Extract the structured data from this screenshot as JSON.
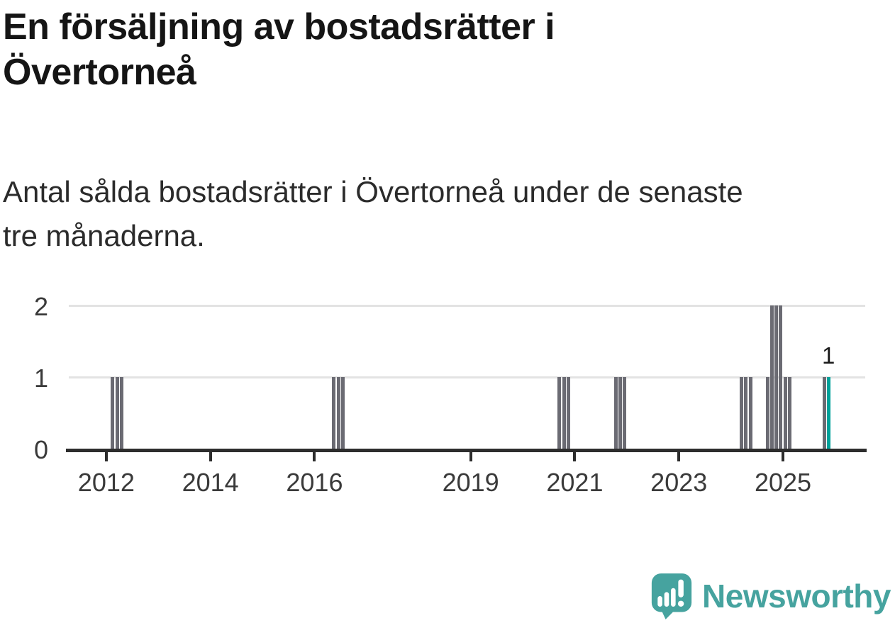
{
  "header": {
    "title_lines": [
      "En försäljning av bostadsrätter i",
      "Övertorneå"
    ],
    "subtitle_lines": [
      "Antal sålda bostadsrätter i Övertorneå under de senaste",
      "tre månaderna."
    ]
  },
  "footer": {
    "brand": "Newsworthy",
    "logo_icon": "newsworthy-speech-bubble-bar-chart-icon"
  },
  "colors": {
    "title": "#151515",
    "subtitle": "#2b2b2b",
    "bar": "#6b6b73",
    "highlight": "#00a29b",
    "axis": "#2d2d2d",
    "grid": "#e3e3e3",
    "tick_label": "#3a3a3a",
    "value_label": "#1a1a1a",
    "brand_teal": "#46a39f"
  },
  "chart_data": {
    "type": "bar",
    "title": "En försäljning av bostadsrätter i Övertorneå",
    "subtitle": "Antal sålda bostadsrätter i Övertorneå under de senaste tre månaderna.",
    "x_domain": [
      2011.28,
      2026.58
    ],
    "ylim": [
      0,
      2
    ],
    "y_ticks": [
      "0",
      "1",
      "2"
    ],
    "x_tick_years": [
      "2012",
      "2014",
      "2016",
      "2019",
      "2021",
      "2023",
      "2025"
    ],
    "grid": "horizontal",
    "legend": "none",
    "points": [
      {
        "month": "2012-02",
        "value": 1
      },
      {
        "month": "2012-03",
        "value": 1
      },
      {
        "month": "2012-04",
        "value": 1
      },
      {
        "month": "2016-05",
        "value": 1
      },
      {
        "month": "2016-06",
        "value": 1
      },
      {
        "month": "2016-07",
        "value": 1
      },
      {
        "month": "2020-09",
        "value": 1
      },
      {
        "month": "2020-10",
        "value": 1
      },
      {
        "month": "2020-11",
        "value": 1
      },
      {
        "month": "2021-10",
        "value": 1
      },
      {
        "month": "2021-11",
        "value": 1
      },
      {
        "month": "2021-12",
        "value": 1
      },
      {
        "month": "2024-03",
        "value": 1
      },
      {
        "month": "2024-04",
        "value": 1
      },
      {
        "month": "2024-05",
        "value": 1
      },
      {
        "month": "2024-09",
        "value": 1
      },
      {
        "month": "2024-10",
        "value": 2
      },
      {
        "month": "2024-11",
        "value": 2
      },
      {
        "month": "2024-12",
        "value": 2
      },
      {
        "month": "2025-01",
        "value": 1
      },
      {
        "month": "2025-02",
        "value": 1
      },
      {
        "month": "2025-10",
        "value": 1
      },
      {
        "month": "2025-11",
        "value": 1,
        "highlight": true,
        "label": "1"
      }
    ]
  }
}
